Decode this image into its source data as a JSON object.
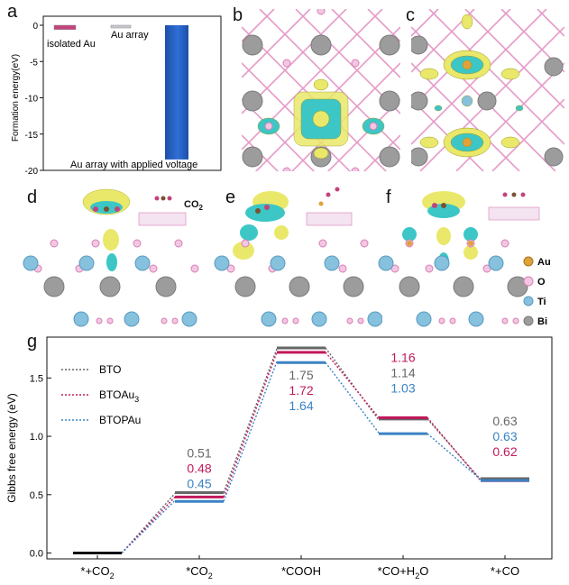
{
  "panels": {
    "a": "a",
    "b": "b",
    "c": "c",
    "d": "d",
    "e": "e",
    "f": "f",
    "g": "g"
  },
  "structures": {
    "d_molecule": "CO",
    "d_molecule_sub": "2",
    "legend": [
      {
        "label": "Au",
        "color": "#e0a13a"
      },
      {
        "label": "O",
        "color": "#e6a6d1"
      },
      {
        "label": "Ti",
        "color": "#86c1de"
      },
      {
        "label": "Bi",
        "color": "#9a9a9a"
      }
    ]
  },
  "chart_data": [
    {
      "type": "bar",
      "ylabel": "Formation energy(eV)",
      "ylim": [
        -20,
        0
      ],
      "yticks": [
        0,
        -5,
        -10,
        -15,
        -20
      ],
      "categories": [
        "isolated Au",
        "Au array",
        "Au array with applied voltage"
      ],
      "values": [
        -0.6,
        -0.2,
        -18.5
      ],
      "colors": [
        "#c2447c",
        "#c8c8d0",
        "#2f6fd6"
      ]
    },
    {
      "type": "line",
      "ylabel": "Gibbs free energy (eV)",
      "ylim": [
        -0.05,
        1.85
      ],
      "yticks": [
        0.0,
        0.5,
        1.0,
        1.5
      ],
      "ytick_labels": [
        "0.0",
        "0.5",
        "1.0",
        "1.5"
      ],
      "steps": [
        {
          "label": "*+CO",
          "sub": "2",
          "tail": ""
        },
        {
          "label": "*CO",
          "sub": "2",
          "tail": ""
        },
        {
          "label": "*COOH",
          "sub": "",
          "tail": ""
        },
        {
          "label": "*CO+H",
          "sub": "2",
          "tail": "O"
        },
        {
          "label": "*+CO",
          "sub": "",
          "tail": ""
        }
      ],
      "series": [
        {
          "name": "BTO",
          "sub": "",
          "color": "#666666",
          "values": [
            0.0,
            0.51,
            1.75,
            1.14,
            0.63
          ],
          "labels": [
            "",
            "0.51",
            "1.75",
            "1.14",
            "0.63"
          ]
        },
        {
          "name": "BTOAu",
          "sub": "3",
          "color": "#c2185b",
          "values": [
            0.0,
            0.48,
            1.72,
            1.16,
            0.62
          ],
          "labels": [
            "",
            "0.48",
            "1.72",
            "1.16",
            "0.62"
          ]
        },
        {
          "name": "BTOPAu",
          "sub": "",
          "color": "#3b82c4",
          "values": [
            0.0,
            0.45,
            1.64,
            1.03,
            0.63
          ],
          "labels": [
            "",
            "0.45",
            "1.64",
            "1.03",
            "0.63"
          ]
        }
      ],
      "label_order": [
        [
          "",
          "",
          "",
          ""
        ],
        [
          "BTO",
          "BTOAu",
          "BTOPAu"
        ],
        [
          "BTO",
          "BTOAu",
          "BTOPAu"
        ],
        [
          "BTOAu",
          "BTO",
          "BTOPAu"
        ],
        [
          "BTO",
          "BTOPAu",
          "BTOAu"
        ]
      ]
    }
  ]
}
